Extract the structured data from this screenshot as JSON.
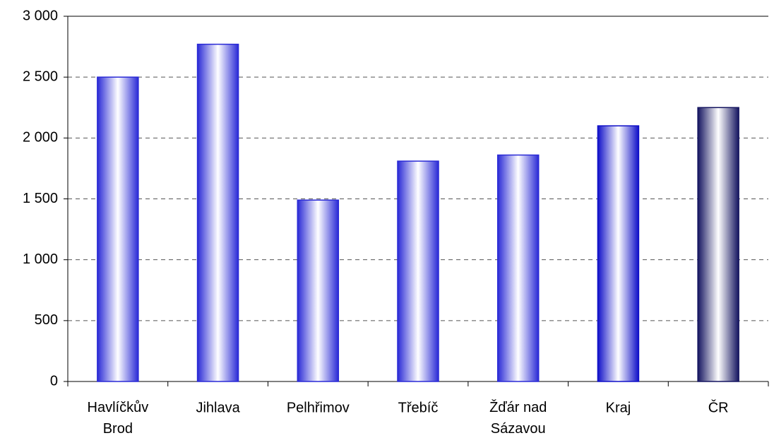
{
  "chart_data": {
    "type": "bar",
    "categories": [
      "Havlíčkův\nBrod",
      "Jihlava",
      "Pelhřimov",
      "Třebíč",
      "Žďár nad\nSázavou",
      "Kraj",
      "ČR"
    ],
    "values": [
      2500,
      2770,
      1490,
      1810,
      1860,
      2100,
      2250
    ],
    "colors": [
      "#2a2ad6",
      "#2a2ad6",
      "#2a2ad6",
      "#2a2ad6",
      "#2a2ad6",
      "#1010c8",
      "#151560"
    ],
    "ylim": [
      0,
      3000
    ],
    "yticks": [
      0,
      500,
      {
        "value": 1000,
        "label": "1 000"
      },
      {
        "value": 1500,
        "label": "1 500"
      },
      {
        "value": 2000,
        "label": "2 000"
      },
      {
        "value": 2500,
        "label": "2 500"
      },
      {
        "value": 3000,
        "label": "3 000"
      }
    ],
    "grid": true
  }
}
